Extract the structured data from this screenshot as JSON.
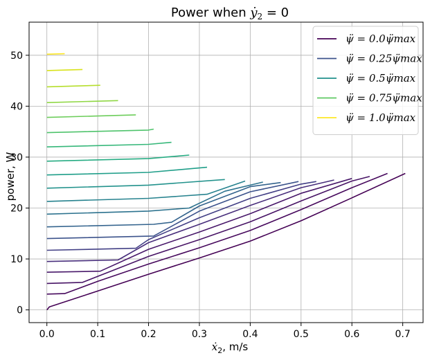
{
  "chart_data": {
    "type": "line",
    "title": "Power when ẏ₂ = 0",
    "xlabel": "ẋ₂, m/s",
    "ylabel": "power, W",
    "xlim": [
      -0.035,
      0.74
    ],
    "ylim": [
      -2.5,
      56.5
    ],
    "xticks": [
      0.0,
      0.1,
      0.2,
      0.3,
      0.4,
      0.5,
      0.6,
      0.7
    ],
    "xtick_labels": [
      "0.0",
      "0.1",
      "0.2",
      "0.3",
      "0.4",
      "0.5",
      "0.6",
      "0.7"
    ],
    "yticks": [
      0,
      10,
      20,
      30,
      40,
      50
    ],
    "ytick_labels": [
      "0",
      "10",
      "20",
      "30",
      "40",
      "50"
    ],
    "grid": true,
    "legend_position": "top-right",
    "colormap": [
      "#440154",
      "#3b528b",
      "#21918c",
      "#5ec962",
      "#fde725"
    ],
    "legend": [
      {
        "label": "ψ̈ = 0.0ψ̈max",
        "color": "#440154"
      },
      {
        "label": "ψ̈ = 0.25ψ̈max",
        "color": "#3b528b"
      },
      {
        "label": "ψ̈ = 0.5ψ̈max",
        "color": "#21918c"
      },
      {
        "label": "ψ̈ = 0.75ψ̈max",
        "color": "#5ec962"
      },
      {
        "label": "ψ̈ = 1.0ψ̈max",
        "color": "#fde725"
      }
    ],
    "series": [
      {
        "color": "#440154",
        "points": [
          [
            0.0,
            0.0
          ],
          [
            0.005,
            0.6
          ],
          [
            0.1,
            3.7
          ],
          [
            0.2,
            7.0
          ],
          [
            0.3,
            10.2
          ],
          [
            0.4,
            13.5
          ],
          [
            0.5,
            17.5
          ],
          [
            0.6,
            22.0
          ],
          [
            0.705,
            26.8
          ]
        ]
      },
      {
        "color": "#46085c",
        "points": [
          [
            0.0,
            3.1
          ],
          [
            0.035,
            3.2
          ],
          [
            0.1,
            5.6
          ],
          [
            0.2,
            9.0
          ],
          [
            0.3,
            12.2
          ],
          [
            0.4,
            15.6
          ],
          [
            0.5,
            19.7
          ],
          [
            0.6,
            24.0
          ],
          [
            0.67,
            26.8
          ]
        ]
      },
      {
        "color": "#471365",
        "points": [
          [
            0.0,
            5.2
          ],
          [
            0.07,
            5.4
          ],
          [
            0.2,
            10.5
          ],
          [
            0.3,
            13.8
          ],
          [
            0.4,
            17.3
          ],
          [
            0.5,
            21.4
          ],
          [
            0.6,
            25.3
          ],
          [
            0.635,
            26.2
          ]
        ]
      },
      {
        "color": "#48186a",
        "points": [
          [
            0.0,
            7.4
          ],
          [
            0.105,
            7.6
          ],
          [
            0.2,
            11.9
          ],
          [
            0.3,
            15.3
          ],
          [
            0.4,
            18.9
          ],
          [
            0.5,
            22.9
          ],
          [
            0.6,
            25.8
          ]
        ]
      },
      {
        "color": "#472d7b",
        "points": [
          [
            0.0,
            9.5
          ],
          [
            0.14,
            9.8
          ],
          [
            0.2,
            13.2
          ],
          [
            0.3,
            16.8
          ],
          [
            0.4,
            20.5
          ],
          [
            0.5,
            24.0
          ],
          [
            0.565,
            25.5
          ]
        ]
      },
      {
        "color": "#423f85",
        "points": [
          [
            0.0,
            11.7
          ],
          [
            0.175,
            12.1
          ],
          [
            0.2,
            13.8
          ],
          [
            0.3,
            18.1
          ],
          [
            0.4,
            21.9
          ],
          [
            0.5,
            24.7
          ],
          [
            0.53,
            25.2
          ]
        ]
      },
      {
        "color": "#3b528b",
        "points": [
          [
            0.0,
            14.0
          ],
          [
            0.21,
            14.5
          ],
          [
            0.3,
            19.4
          ],
          [
            0.4,
            23.2
          ],
          [
            0.495,
            25.2
          ]
        ]
      },
      {
        "color": "#33638d",
        "points": [
          [
            0.0,
            16.3
          ],
          [
            0.21,
            16.8
          ],
          [
            0.245,
            17.2
          ],
          [
            0.3,
            20.4
          ],
          [
            0.4,
            24.2
          ],
          [
            0.46,
            25.0
          ]
        ]
      },
      {
        "color": "#2c728e",
        "points": [
          [
            0.0,
            18.8
          ],
          [
            0.2,
            19.4
          ],
          [
            0.28,
            20.0
          ],
          [
            0.35,
            23.3
          ],
          [
            0.425,
            25.1
          ]
        ]
      },
      {
        "color": "#26828e",
        "points": [
          [
            0.0,
            21.3
          ],
          [
            0.2,
            21.9
          ],
          [
            0.315,
            22.7
          ],
          [
            0.39,
            25.3
          ]
        ]
      },
      {
        "color": "#22928c",
        "points": [
          [
            0.0,
            23.9
          ],
          [
            0.2,
            24.5
          ],
          [
            0.35,
            25.6
          ]
        ]
      },
      {
        "color": "#1f9e89",
        "points": [
          [
            0.0,
            26.5
          ],
          [
            0.2,
            27.0
          ],
          [
            0.315,
            28.0
          ]
        ]
      },
      {
        "color": "#25ab82",
        "points": [
          [
            0.0,
            29.2
          ],
          [
            0.2,
            29.7
          ],
          [
            0.28,
            30.4
          ]
        ]
      },
      {
        "color": "#35b779",
        "points": [
          [
            0.0,
            32.0
          ],
          [
            0.2,
            32.5
          ],
          [
            0.245,
            32.9
          ]
        ]
      },
      {
        "color": "#4ec36b",
        "points": [
          [
            0.0,
            34.8
          ],
          [
            0.2,
            35.3
          ],
          [
            0.21,
            35.5
          ]
        ]
      },
      {
        "color": "#6ccd5a",
        "points": [
          [
            0.0,
            37.8
          ],
          [
            0.175,
            38.3
          ]
        ]
      },
      {
        "color": "#8fd744",
        "points": [
          [
            0.0,
            40.7
          ],
          [
            0.14,
            41.1
          ]
        ]
      },
      {
        "color": "#b5de2b",
        "points": [
          [
            0.0,
            43.8
          ],
          [
            0.105,
            44.1
          ]
        ]
      },
      {
        "color": "#d8e219",
        "points": [
          [
            0.0,
            47.0
          ],
          [
            0.07,
            47.2
          ]
        ]
      },
      {
        "color": "#fde725",
        "points": [
          [
            0.0,
            50.2
          ],
          [
            0.035,
            50.3
          ]
        ]
      }
    ]
  }
}
